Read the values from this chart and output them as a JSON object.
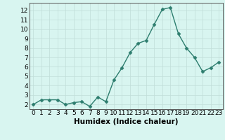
{
  "x": [
    0,
    1,
    2,
    3,
    4,
    5,
    6,
    7,
    8,
    9,
    10,
    11,
    12,
    13,
    14,
    15,
    16,
    17,
    18,
    19,
    20,
    21,
    22,
    23
  ],
  "y": [
    2.0,
    2.5,
    2.5,
    2.5,
    2.0,
    2.2,
    2.3,
    1.8,
    2.8,
    2.3,
    4.6,
    5.9,
    7.5,
    8.5,
    8.8,
    10.5,
    12.1,
    12.3,
    9.5,
    8.0,
    7.0,
    5.5,
    5.9,
    6.5
  ],
  "xlabel": "Humidex (Indice chaleur)",
  "line_color": "#2d7d6e",
  "marker": "D",
  "marker_size": 2.5,
  "bg_color": "#d8f5f0",
  "grid_color": "#c0ddd8",
  "xlim": [
    -0.5,
    23.5
  ],
  "ylim": [
    1.5,
    12.8
  ],
  "yticks": [
    2,
    3,
    4,
    5,
    6,
    7,
    8,
    9,
    10,
    11,
    12
  ],
  "xticks": [
    0,
    1,
    2,
    3,
    4,
    5,
    6,
    7,
    8,
    9,
    10,
    11,
    12,
    13,
    14,
    15,
    16,
    17,
    18,
    19,
    20,
    21,
    22,
    23
  ],
  "tick_fontsize": 6.5,
  "label_fontsize": 7.5,
  "linewidth": 1.0
}
